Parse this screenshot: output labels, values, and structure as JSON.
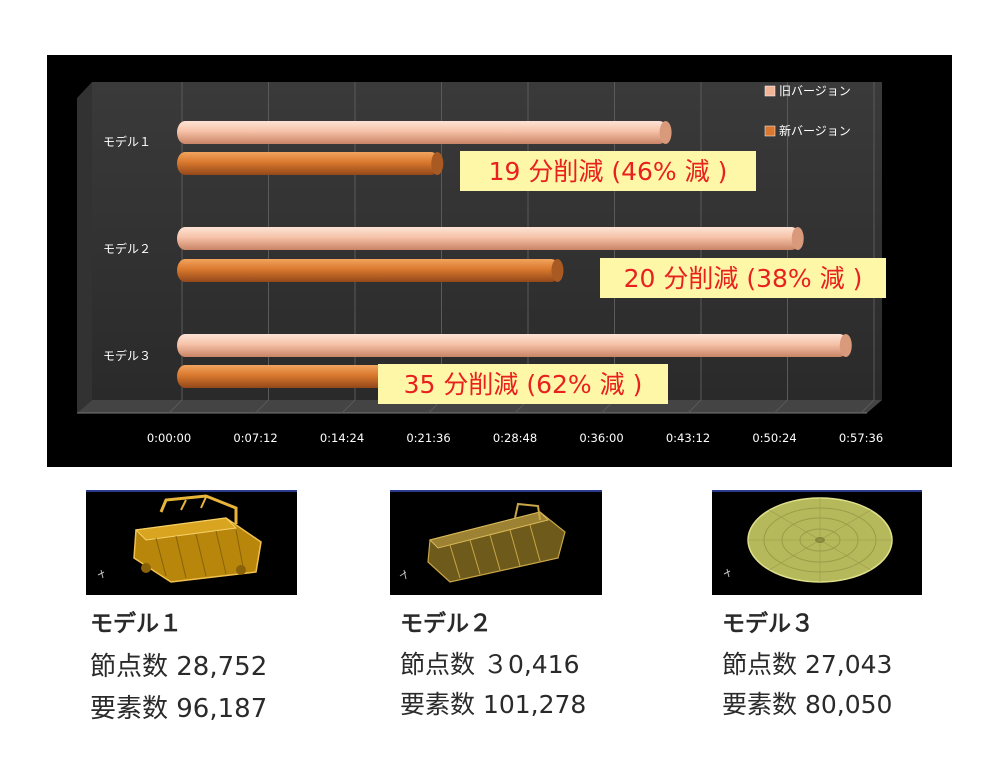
{
  "chart_data": {
    "type": "bar",
    "orientation": "horizontal",
    "categories": [
      "モデル１",
      "モデル２",
      "モデル３"
    ],
    "series": [
      {
        "name": "旧バージョン",
        "color": "#f1b497",
        "values_minutes": [
          41.5,
          52.5,
          56.5
        ],
        "values": [
          "0:41:30",
          "0:52:30",
          "0:56:30"
        ]
      },
      {
        "name": "新バージョン",
        "color": "#d9782e",
        "values_minutes": [
          22.5,
          32.5,
          21.5
        ],
        "values": [
          "0:22:30",
          "0:32:30",
          "0:21:30"
        ]
      }
    ],
    "x_ticks": [
      "0:00:00",
      "0:07:12",
      "0:14:24",
      "0:21:36",
      "0:28:48",
      "0:36:00",
      "0:43:12",
      "0:50:24",
      "0:57:36"
    ],
    "xlim_minutes": [
      0,
      57.6
    ],
    "legend_position": "top-right",
    "grid": true,
    "annotations": [
      "19 分削減 (46% 減 )",
      "20 分削減 (38% 減 )",
      "35 分削減 (62% 減 )"
    ],
    "annotation_bg": "#fff7a8",
    "annotation_color": "#e8201e"
  },
  "models": [
    {
      "title": "モデル１",
      "nodes": "節点数 28,752",
      "elements": "要素数 96,187",
      "shape": "frame-gold"
    },
    {
      "title": "モデル２",
      "nodes": "節点数 ３0,416",
      "elements": "要素数 101,278",
      "shape": "frame-olive"
    },
    {
      "title": "モデル３",
      "nodes": "節点数 27,043",
      "elements": "要素数 80,050",
      "shape": "disc-yellow"
    }
  ]
}
